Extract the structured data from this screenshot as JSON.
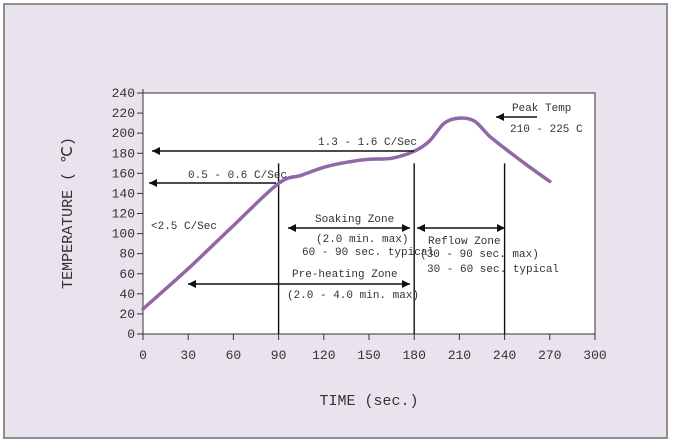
{
  "chart_data": {
    "type": "line",
    "title": "",
    "xlabel": "TIME (sec.)",
    "ylabel": "TEMPERATURE ( ℃)",
    "xlim": [
      0,
      300
    ],
    "ylim": [
      0,
      240
    ],
    "x_ticks": [
      0,
      30,
      60,
      90,
      120,
      150,
      180,
      210,
      240,
      270,
      300
    ],
    "y_ticks": [
      0,
      20,
      40,
      60,
      80,
      100,
      120,
      140,
      160,
      180,
      200,
      220,
      240
    ],
    "grid": false,
    "series": [
      {
        "color": "#9067a8",
        "points": [
          [
            0,
            25
          ],
          [
            30,
            65
          ],
          [
            60,
            108
          ],
          [
            90,
            150
          ],
          [
            105,
            158
          ],
          [
            120,
            166
          ],
          [
            135,
            171
          ],
          [
            150,
            174
          ],
          [
            165,
            175
          ],
          [
            180,
            182
          ],
          [
            190,
            192
          ],
          [
            200,
            210
          ],
          [
            210,
            215
          ],
          [
            220,
            212
          ],
          [
            230,
            197
          ],
          [
            240,
            185
          ],
          [
            255,
            168
          ],
          [
            270,
            152
          ]
        ]
      }
    ],
    "vertical_lines": [
      90,
      180,
      240
    ],
    "annotations": {
      "peak_temp_label": "Peak Temp",
      "peak_temp_range": "210 - 225 C",
      "rate_high": "1.3 - 1.6 C/Sec",
      "rate_mid": "0.5 - 0.6 C/Sec",
      "rate_low": "<2.5 C/Sec",
      "soaking_title": "Soaking Zone",
      "soaking_max": "(2.0 min. max)",
      "soaking_typical": "60 - 90 sec. typical",
      "reflow_title": "Reflow Zone",
      "reflow_max": "(30 - 90 sec. max)",
      "reflow_typical": "30 - 60 sec. typical",
      "preheat_title": "Pre-heating Zone",
      "preheat_max": "(2.0 - 4.0 min. max)"
    }
  }
}
